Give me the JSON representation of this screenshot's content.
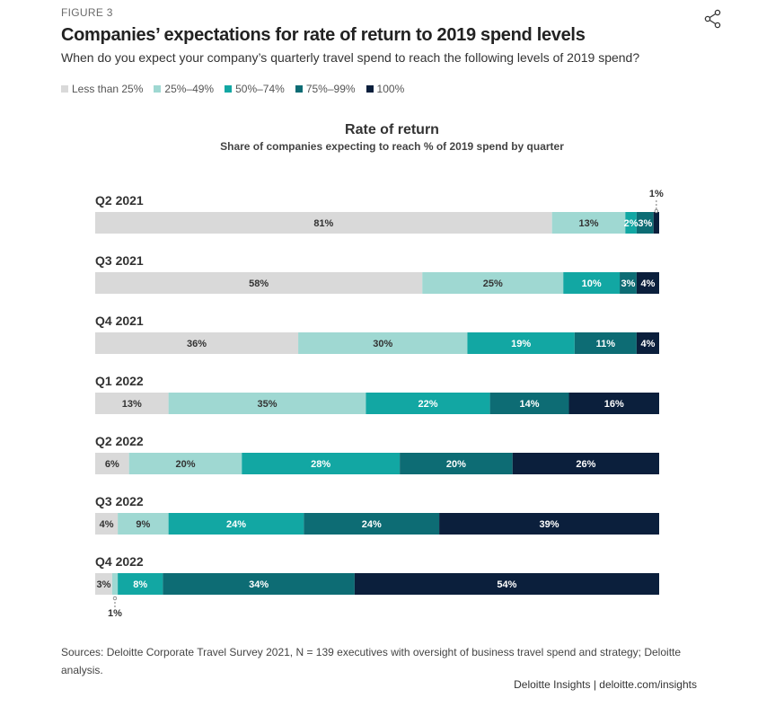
{
  "figure_label": "FIGURE 3",
  "title": "Companies’ expectations for rate of return to 2019 spend levels",
  "subtitle": "When do you expect your company’s quarterly travel spend to reach the following levels of 2019 spend?",
  "chart_data": {
    "type": "bar",
    "orientation": "horizontal",
    "stacked": true,
    "title": "Rate of return",
    "subtitle": "Share of companies expecting to reach % of 2019 spend by quarter",
    "categories": [
      "Q2 2021",
      "Q3 2021",
      "Q4 2021",
      "Q1 2022",
      "Q2 2022",
      "Q3 2022",
      "Q4 2022"
    ],
    "series": [
      {
        "name": "Less than 25%",
        "color": "#d9d9d9",
        "label_color": "#333333",
        "values": [
          81,
          58,
          36,
          13,
          6,
          4,
          3
        ]
      },
      {
        "name": "25%–49%",
        "color": "#9fd8d2",
        "label_color": "#333333",
        "values": [
          13,
          25,
          30,
          35,
          20,
          9,
          1
        ]
      },
      {
        "name": "50%–74%",
        "color": "#12a7a3",
        "label_color": "#ffffff",
        "values": [
          2,
          10,
          19,
          22,
          28,
          24,
          8
        ]
      },
      {
        "name": "75%–99%",
        "color": "#0d6c74",
        "label_color": "#ffffff",
        "values": [
          3,
          3,
          11,
          14,
          20,
          24,
          34
        ]
      },
      {
        "name": "100%",
        "color": "#0b1f3c",
        "label_color": "#ffffff",
        "values": [
          1,
          4,
          4,
          16,
          26,
          39,
          54
        ]
      }
    ],
    "xlim": [
      0,
      100
    ],
    "legend_position": "top-left",
    "grid": false
  },
  "legend": [
    {
      "label": "Less than 25%",
      "color": "#d9d9d9"
    },
    {
      "label": "25%–49%",
      "color": "#9fd8d2"
    },
    {
      "label": "50%–74%",
      "color": "#12a7a3"
    },
    {
      "label": "75%–99%",
      "color": "#0d6c74"
    },
    {
      "label": "100%",
      "color": "#0b1f3c"
    }
  ],
  "sources": "Sources: Deloitte Corporate Travel Survey 2021, N = 139 executives with oversight of business travel spend and strategy; Deloitte analysis.",
  "credit": "Deloitte Insights | deloitte.com/insights",
  "share_icon": "share-icon"
}
